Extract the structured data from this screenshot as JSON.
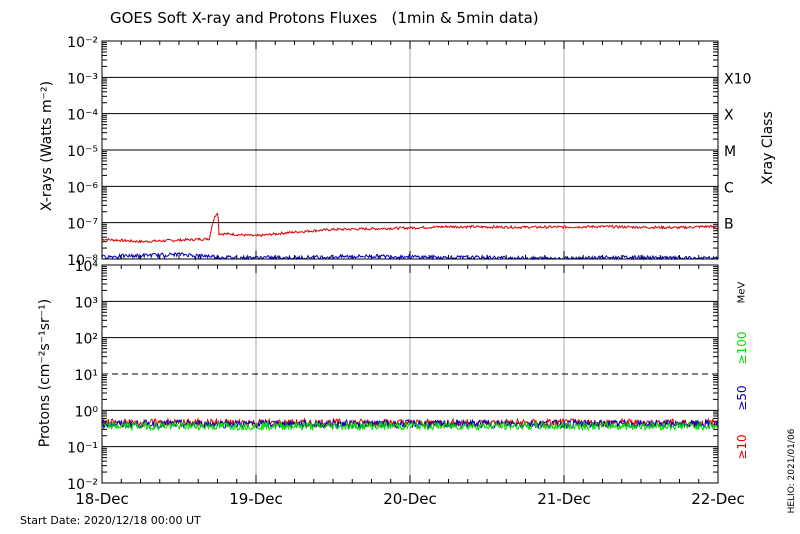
{
  "chart_data": [
    {
      "type": "line",
      "title": "GOES Soft X-ray and Protons Fluxes   (1min & 5min data)",
      "ylabel": "X-rays (Watts m⁻²)",
      "yscale": "log",
      "ylim": [
        1e-08,
        0.01
      ],
      "y_ticks": [
        {
          "value": 0.01,
          "label": "10⁻²"
        },
        {
          "value": 0.001,
          "label": "10⁻³"
        },
        {
          "value": 0.0001,
          "label": "10⁻⁴"
        },
        {
          "value": 1e-05,
          "label": "10⁻⁵"
        },
        {
          "value": 1e-06,
          "label": "10⁻⁶"
        },
        {
          "value": 1e-07,
          "label": "10⁻⁷"
        },
        {
          "value": 1e-08,
          "label": "10⁻⁸"
        }
      ],
      "right_label": "Xray Class",
      "classes": [
        {
          "label": "X10",
          "value": 0.001
        },
        {
          "label": "X",
          "value": 0.0001
        },
        {
          "label": "M",
          "value": 1e-05
        },
        {
          "label": "C",
          "value": 1e-06
        },
        {
          "label": "B",
          "value": 1e-07
        }
      ],
      "x_days": [
        0,
        0.25,
        0.5,
        0.7,
        0.75,
        0.76,
        0.85,
        1.0,
        1.25,
        1.5,
        1.75,
        2.0,
        2.25,
        2.5,
        2.75,
        3.0,
        3.25,
        3.5,
        3.75,
        3.95,
        4.0
      ],
      "series": [
        {
          "color": "#e00000",
          "values": [
            3.5e-08,
            3e-08,
            3.3e-08,
            3.6e-08,
            2e-07,
            5e-08,
            4.8e-08,
            4.3e-08,
            5.5e-08,
            6.5e-08,
            6.8e-08,
            7.2e-08,
            7.8e-08,
            7.6e-08,
            7.5e-08,
            7.6e-08,
            7.8e-08,
            7.5e-08,
            7.3e-08,
            7.9e-08,
            6.8e-08
          ]
        },
        {
          "color": "#0000c0",
          "values": [
            1.15e-08,
            1.25e-08,
            1.35e-08,
            1.2e-08,
            1.15e-08,
            1.15e-08,
            1.1e-08,
            1.1e-08,
            1.1e-08,
            1.15e-08,
            1.2e-08,
            1.15e-08,
            1.1e-08,
            1.1e-08,
            1.05e-08,
            1.05e-08,
            1.1e-08,
            1.1e-08,
            1.05e-08,
            1.05e-08,
            1.05e-08
          ]
        }
      ],
      "grid": true
    },
    {
      "type": "line",
      "ylabel": "Protons (cm⁻²s⁻¹sr⁻¹)",
      "yscale": "log",
      "ylim": [
        0.01,
        10000
      ],
      "y_ticks": [
        {
          "value": 10000,
          "label": "10⁴"
        },
        {
          "value": 1000,
          "label": "10³"
        },
        {
          "value": 100,
          "label": "10²"
        },
        {
          "value": 10,
          "label": "10¹"
        },
        {
          "value": 1,
          "label": "10⁰"
        },
        {
          "value": 0.1,
          "label": "10⁻¹"
        },
        {
          "value": 0.01,
          "label": "10⁻²"
        }
      ],
      "threshold": {
        "value": 10,
        "style": "dashed"
      },
      "unit_label": "MeV",
      "legend": [
        {
          "label": "≥100",
          "color": "#00dd00"
        },
        {
          "label": "≥50",
          "color": "#0000c0"
        },
        {
          "label": "≥10",
          "color": "#e00000"
        }
      ],
      "x_days": [
        0,
        1,
        2,
        3,
        4
      ],
      "series": [
        {
          "name": "≥10",
          "color": "#e00000",
          "values": [
            0.45,
            0.45,
            0.45,
            0.45,
            0.45
          ]
        },
        {
          "name": "≥50",
          "color": "#0000c0",
          "values": [
            0.42,
            0.42,
            0.42,
            0.42,
            0.42
          ]
        },
        {
          "name": "≥100",
          "color": "#00dd00",
          "values": [
            0.37,
            0.37,
            0.37,
            0.37,
            0.37
          ]
        }
      ],
      "grid": true
    }
  ],
  "x_tick_labels": [
    "18-Dec",
    "19-Dec",
    "20-Dec",
    "21-Dec",
    "22-Dec"
  ],
  "start_date": "Start Date: 2020/12/18 00:00 UT",
  "stamp": "HELIO: 2021/01/06"
}
